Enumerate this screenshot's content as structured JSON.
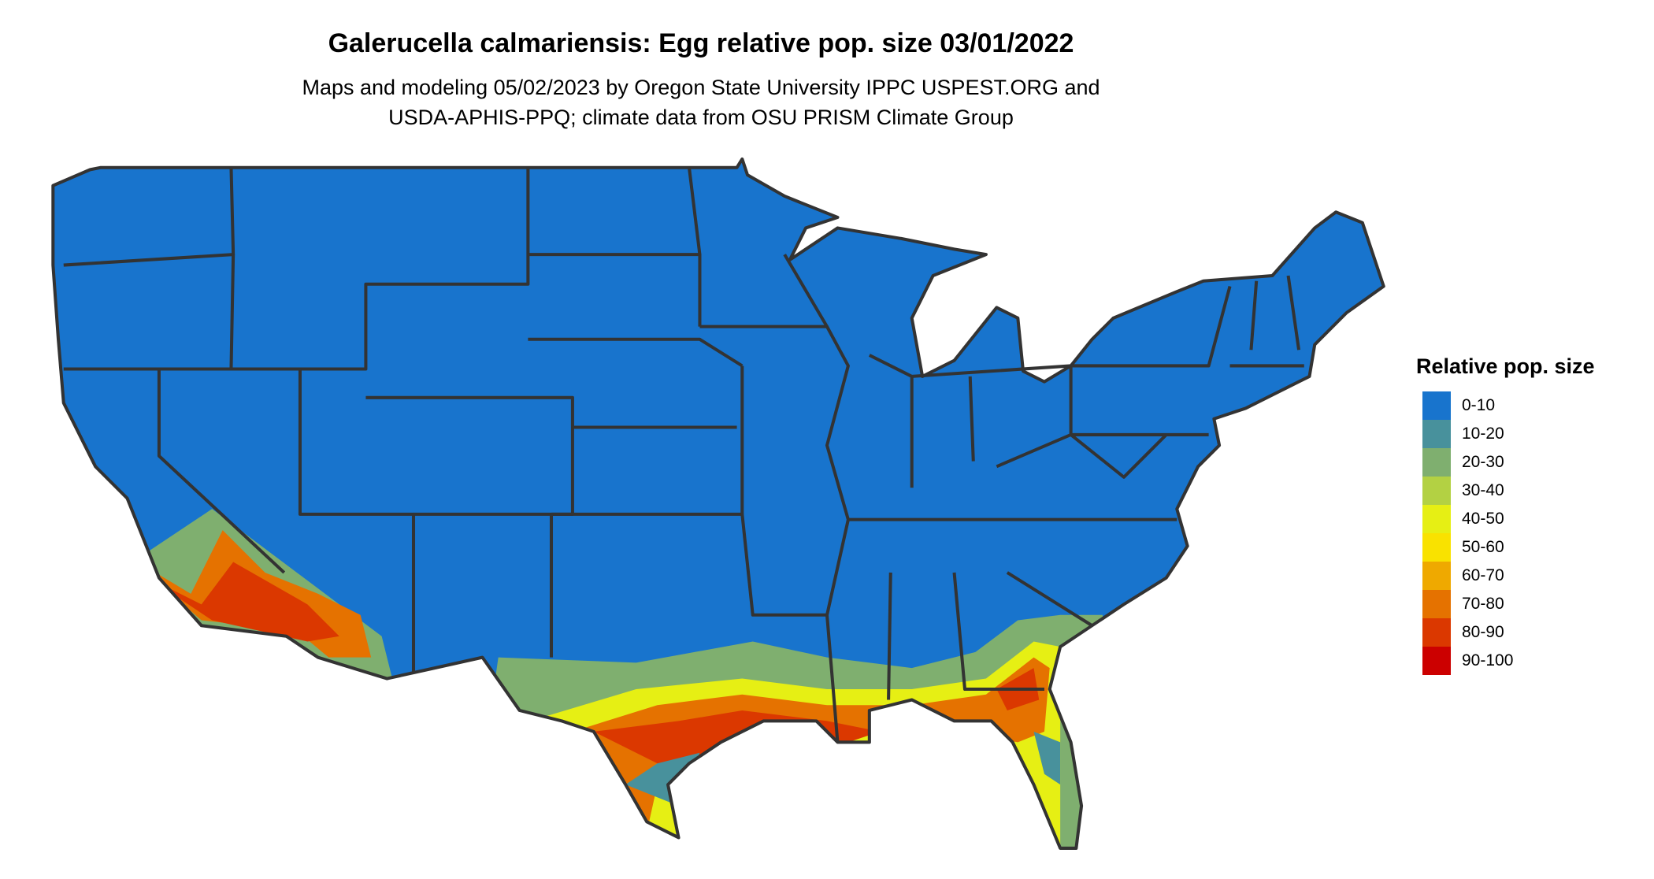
{
  "title": "Galerucella calmariensis: Egg relative pop. size 03/01/2022",
  "subtitle_line1": "Maps and modeling 05/02/2023 by Oregon State University IPPC USPEST.ORG and",
  "subtitle_line2": "USDA-APHIS-PPQ; climate data from OSU PRISM Climate Group",
  "legend": {
    "title": "Relative pop. size",
    "items": [
      {
        "label": "0-10",
        "color": "#1874CD"
      },
      {
        "label": "10-20",
        "color": "#48919C"
      },
      {
        "label": "20-30",
        "color": "#7FAF6F"
      },
      {
        "label": "30-40",
        "color": "#B3D143"
      },
      {
        "label": "40-50",
        "color": "#E6EF14"
      },
      {
        "label": "50-60",
        "color": "#F9E200"
      },
      {
        "label": "60-70",
        "color": "#EFA900"
      },
      {
        "label": "70-80",
        "color": "#E57200"
      },
      {
        "label": "80-90",
        "color": "#DB3800"
      },
      {
        "label": "90-100",
        "color": "#CC0000"
      }
    ]
  },
  "map": {
    "region": "Conterminous United States",
    "boundary_color": "#333333"
  }
}
